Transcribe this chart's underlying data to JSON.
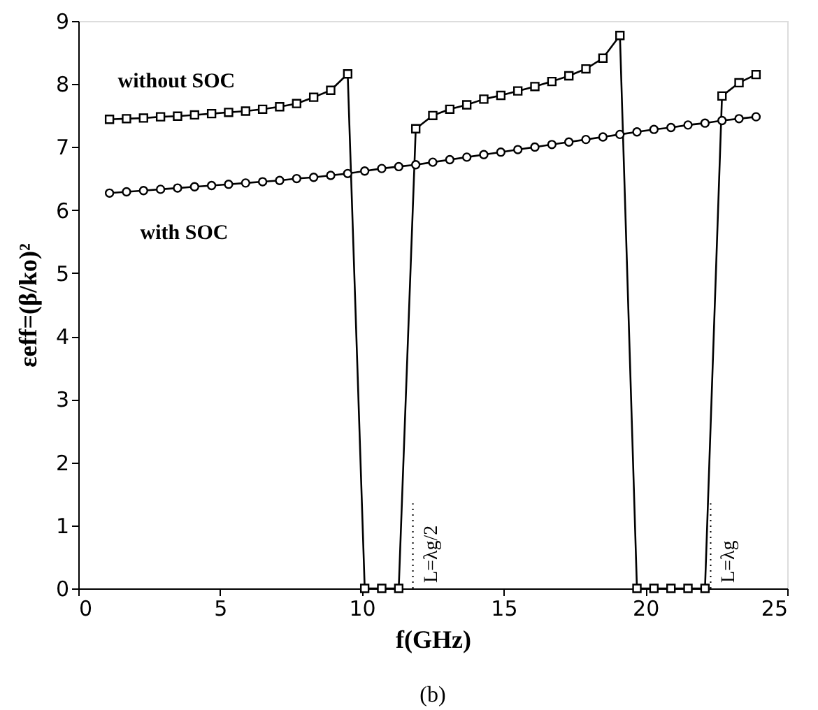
{
  "chart_data": {
    "type": "line",
    "ylabel": "εeff=(β/ko)²",
    "xlabel": "f(GHz)",
    "x": [
      1.1,
      1.7,
      2.3,
      2.9,
      3.5,
      4.1,
      4.7,
      5.3,
      5.9,
      6.5,
      7.1,
      7.7,
      8.3,
      8.9,
      9.5,
      10.1,
      10.7,
      11.3,
      11.9,
      12.5,
      13.1,
      13.7,
      14.3,
      14.9,
      15.5,
      16.1,
      16.7,
      17.3,
      17.9,
      18.5,
      19.1,
      19.7,
      20.3,
      20.9,
      21.5,
      22.1,
      22.7,
      23.3,
      23.9
    ],
    "series": [
      {
        "name": "without SOC",
        "color": "#000000",
        "marker": "square",
        "values": [
          7.44,
          7.45,
          7.46,
          7.48,
          7.49,
          7.51,
          7.53,
          7.55,
          7.57,
          7.6,
          7.64,
          7.69,
          7.79,
          7.9,
          8.16,
          0,
          0,
          0,
          7.29,
          7.5,
          7.6,
          7.67,
          7.76,
          7.82,
          7.89,
          7.96,
          8.04,
          8.13,
          8.24,
          8.41,
          8.77,
          0,
          0,
          0,
          0,
          0,
          7.81,
          8.02,
          8.15
        ]
      },
      {
        "name": "with SOC",
        "color": "#000000",
        "marker": "circle",
        "values": [
          6.27,
          6.29,
          6.31,
          6.33,
          6.35,
          6.37,
          6.39,
          6.41,
          6.43,
          6.45,
          6.47,
          6.5,
          6.52,
          6.55,
          6.58,
          6.62,
          6.66,
          6.69,
          6.72,
          6.76,
          6.8,
          6.84,
          6.88,
          6.92,
          6.96,
          7.0,
          7.04,
          7.08,
          7.12,
          7.16,
          7.2,
          7.24,
          7.28,
          7.31,
          7.35,
          7.38,
          7.42,
          7.45,
          7.48
        ]
      }
    ],
    "xlim": [
      0,
      25
    ],
    "xticks": [
      0,
      5,
      10,
      15,
      20,
      25
    ],
    "ylim": [
      0,
      9
    ],
    "yticks": [
      0,
      1,
      2,
      3,
      4,
      5,
      6,
      7,
      8,
      9
    ],
    "grid": false,
    "line_style": "solid",
    "ref_lines": [
      {
        "axis": "x",
        "value": 11.8,
        "label": "L=λg/2",
        "line_style": "dotted"
      },
      {
        "axis": "x",
        "value": 22.3,
        "label": "L=λg",
        "line_style": "dotted"
      }
    ],
    "annotations": [
      "(b)"
    ]
  }
}
